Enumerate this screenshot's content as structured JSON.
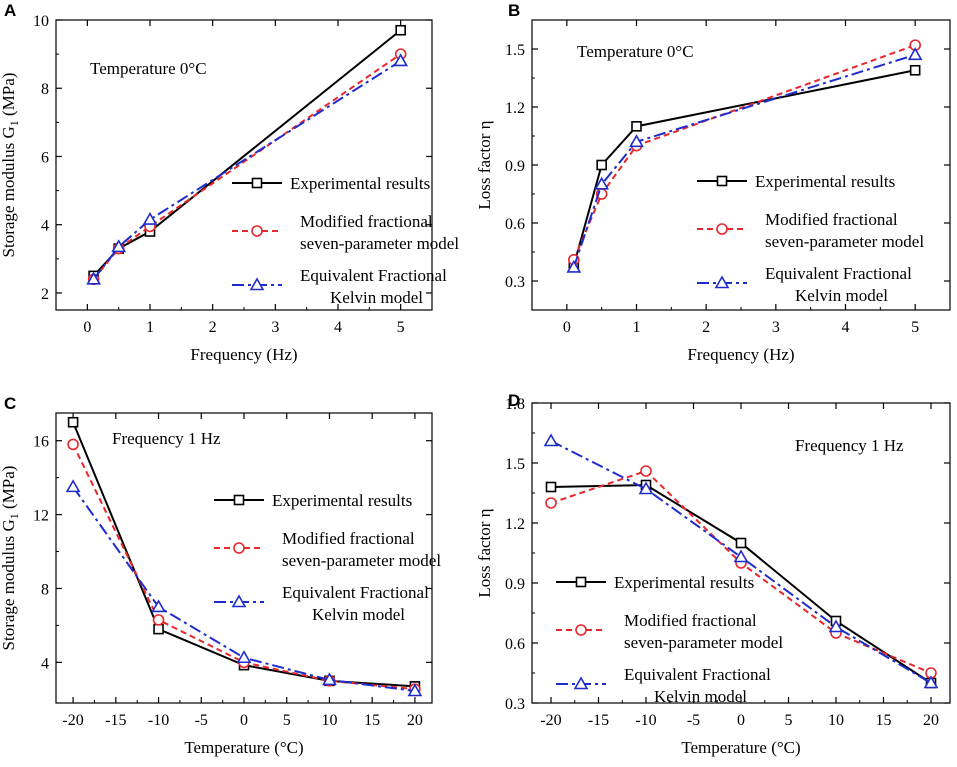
{
  "colors": {
    "experimental": "#000000",
    "modified": "#e8262b",
    "equivalent": "#1f2ccc"
  },
  "legend": [
    {
      "key": "experimental",
      "lines": [
        "Experimental results"
      ],
      "marker": "square",
      "dash": "solid"
    },
    {
      "key": "modified",
      "lines": [
        "Modified fractional",
        "seven-parameter model"
      ],
      "marker": "circle",
      "dash": "dash"
    },
    {
      "key": "equivalent",
      "lines": [
        "Equivalent Fractional",
        "Kelvin model"
      ],
      "marker": "triangle",
      "dash": "dashdot"
    }
  ],
  "chart_data": [
    {
      "panel": "A",
      "type": "line",
      "annotation": "Temperature 0°C",
      "xlabel": "Frequency (Hz)",
      "ylabel": "Storage modulus G",
      "ylabel_sub": "1",
      "ylabel_unit": " (MPa)",
      "xlim": [
        -0.5,
        5.5
      ],
      "ylim": [
        1.5,
        10.0
      ],
      "xticks": [
        0,
        1,
        2,
        3,
        4,
        5
      ],
      "yticks": [
        2,
        4,
        6,
        8,
        10
      ],
      "series": [
        {
          "key": "experimental",
          "x": [
            0.1,
            0.5,
            1,
            5
          ],
          "values": [
            2.5,
            3.3,
            3.8,
            9.7
          ]
        },
        {
          "key": "modified",
          "x": [
            0.1,
            0.5,
            1,
            5
          ],
          "values": [
            2.4,
            3.3,
            3.95,
            9.0
          ]
        },
        {
          "key": "equivalent",
          "x": [
            0.1,
            0.5,
            1,
            5
          ],
          "values": [
            2.4,
            3.35,
            4.15,
            8.8
          ]
        }
      ]
    },
    {
      "panel": "B",
      "type": "line",
      "annotation": "Temperature 0°C",
      "xlabel": "Frequency (Hz)",
      "ylabel": "Loss factor η",
      "ylabel_sub": "",
      "ylabel_unit": "",
      "xlim": [
        -0.5,
        5.5
      ],
      "ylim": [
        0.15,
        1.65
      ],
      "xticks": [
        0,
        1,
        2,
        3,
        4,
        5
      ],
      "yticks": [
        0.3,
        0.6,
        0.9,
        1.2,
        1.5
      ],
      "series": [
        {
          "key": "experimental",
          "x": [
            0.1,
            0.5,
            1,
            5
          ],
          "values": [
            0.38,
            0.9,
            1.1,
            1.39
          ]
        },
        {
          "key": "modified",
          "x": [
            0.1,
            0.5,
            1,
            5
          ],
          "values": [
            0.41,
            0.75,
            1.0,
            1.52
          ]
        },
        {
          "key": "equivalent",
          "x": [
            0.1,
            0.5,
            1,
            5
          ],
          "values": [
            0.37,
            0.8,
            1.02,
            1.47
          ]
        }
      ]
    },
    {
      "panel": "C",
      "type": "line",
      "annotation": "Frequency 1 Hz",
      "xlabel": "Temperature (°C)",
      "ylabel": "Storage modulus G",
      "ylabel_sub": "1",
      "ylabel_unit": " (MPa)",
      "xlim": [
        -22,
        22
      ],
      "ylim": [
        1.8,
        17.5
      ],
      "xticks": [
        -20,
        -15,
        -10,
        -5,
        0,
        5,
        10,
        15,
        20
      ],
      "yticks": [
        4,
        8,
        12,
        16
      ],
      "series": [
        {
          "key": "experimental",
          "x": [
            -20,
            -10,
            0,
            10,
            20
          ],
          "values": [
            17.0,
            5.8,
            3.85,
            3.0,
            2.7
          ]
        },
        {
          "key": "modified",
          "x": [
            -20,
            -10,
            0,
            10,
            20
          ],
          "values": [
            15.8,
            6.3,
            4.0,
            3.0,
            2.55
          ]
        },
        {
          "key": "equivalent",
          "x": [
            -20,
            -10,
            0,
            10,
            20
          ],
          "values": [
            13.5,
            7.0,
            4.25,
            3.05,
            2.45
          ]
        }
      ]
    },
    {
      "panel": "D",
      "type": "line",
      "annotation": "Frequency 1 Hz",
      "xlabel": "Temperature (°C)",
      "ylabel": "Loss factor η",
      "ylabel_sub": "",
      "ylabel_unit": "",
      "xlim": [
        -22,
        22
      ],
      "ylim": [
        0.3,
        1.8
      ],
      "xticks": [
        -20,
        -15,
        -10,
        -5,
        0,
        5,
        10,
        15,
        20
      ],
      "yticks": [
        0.3,
        0.6,
        0.9,
        1.2,
        1.5,
        1.8
      ],
      "series": [
        {
          "key": "experimental",
          "x": [
            -20,
            -10,
            0,
            10,
            20
          ],
          "values": [
            1.38,
            1.39,
            1.1,
            0.71,
            0.4
          ]
        },
        {
          "key": "modified",
          "x": [
            -20,
            -10,
            0,
            10,
            20
          ],
          "values": [
            1.3,
            1.46,
            1.0,
            0.65,
            0.45
          ]
        },
        {
          "key": "equivalent",
          "x": [
            -20,
            -10,
            0,
            10,
            20
          ],
          "values": [
            1.61,
            1.37,
            1.03,
            0.68,
            0.4
          ]
        }
      ]
    }
  ]
}
